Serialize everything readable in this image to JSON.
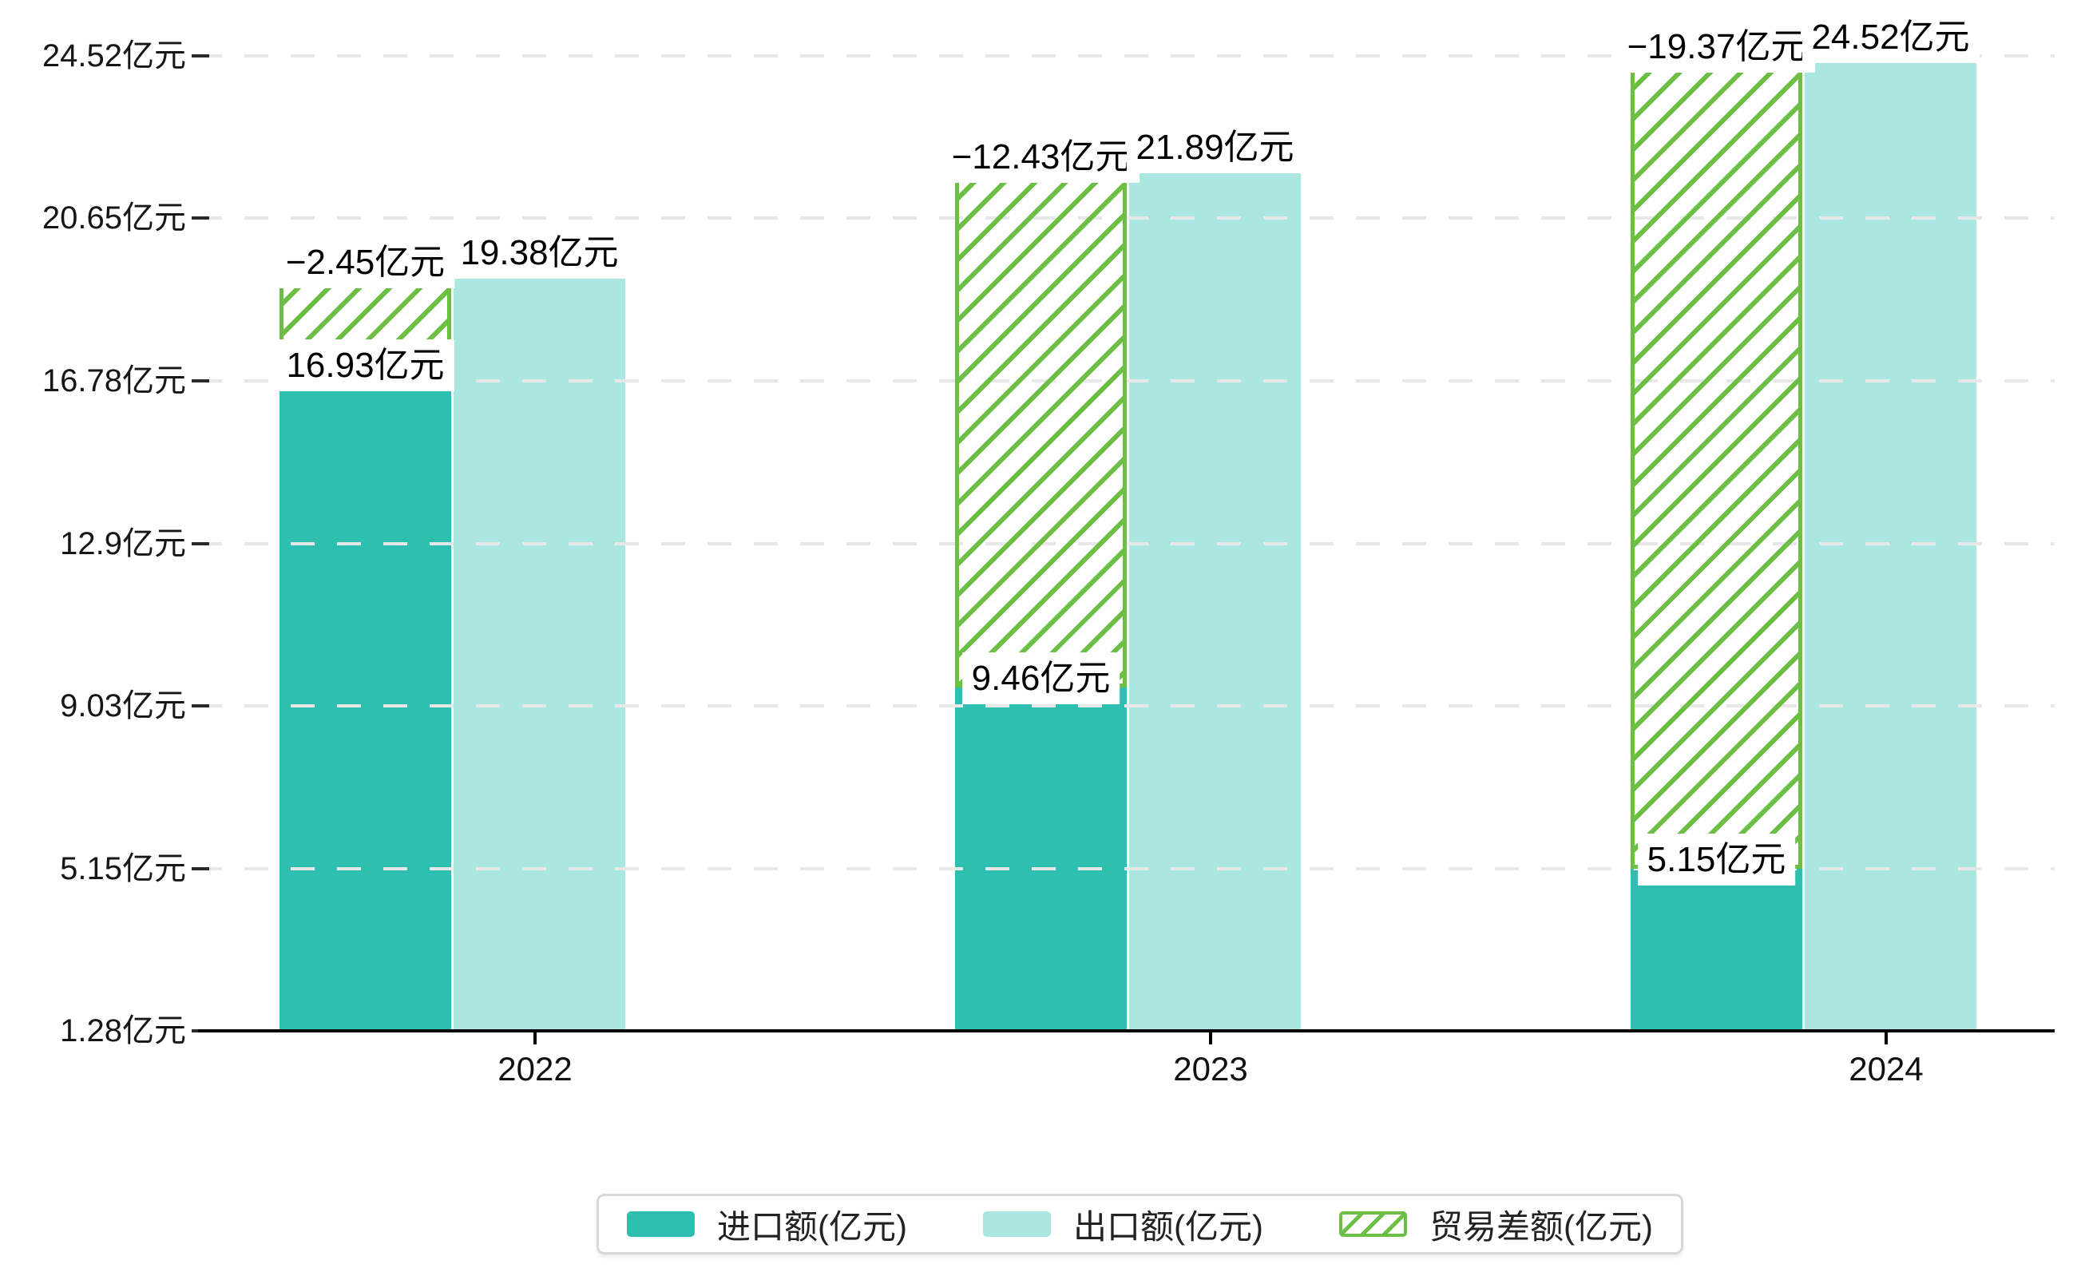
{
  "chart_data": {
    "type": "bar",
    "title": "",
    "categories": [
      "2022",
      "2023",
      "2024"
    ],
    "series": [
      {
        "name": "进口额(亿元)",
        "kind": "bar",
        "color": "#2FBFB0",
        "values": [
          16.93,
          9.46,
          5.15
        ],
        "data_labels": [
          "16.93亿元",
          "9.46亿元",
          "5.15亿元"
        ]
      },
      {
        "name": "出口额(亿元)",
        "kind": "bar",
        "color": "#A9E7E0",
        "values": [
          19.38,
          21.89,
          24.52
        ],
        "data_labels": [
          "19.38亿元",
          "21.89亿元",
          "24.52亿元"
        ]
      },
      {
        "name": "贸易差额(亿元)",
        "kind": "hatch-range",
        "color": "#6CBE45",
        "values": [
          -2.45,
          -12.43,
          -19.37
        ],
        "data_labels": [
          "−2.45亿元",
          "−12.43亿元",
          "−19.37亿元"
        ],
        "note": "hatched bar drawn over import-bar slot, spanning from import value up to export value"
      }
    ],
    "y_axis": {
      "unit": "亿元",
      "min": 1.28,
      "max": 24.52,
      "ticks": [
        {
          "value": 24.52,
          "label": "24.52亿元"
        },
        {
          "value": 20.65,
          "label": "20.65亿元"
        },
        {
          "value": 16.78,
          "label": "16.78亿元"
        },
        {
          "value": 12.9,
          "label": "12.9亿元"
        },
        {
          "value": 9.03,
          "label": "9.03亿元"
        },
        {
          "value": 5.15,
          "label": "5.15亿元"
        },
        {
          "value": 1.28,
          "label": "1.28亿元"
        }
      ]
    },
    "x_axis": {
      "labels": [
        "2022",
        "2023",
        "2024"
      ]
    },
    "legend": {
      "position": "bottom",
      "items": [
        {
          "label": "进口额(亿元)",
          "swatch": "solid",
          "color": "#2FBFB0"
        },
        {
          "label": "出口额(亿元)",
          "swatch": "solid",
          "color": "#A9E7E0"
        },
        {
          "label": "贸易差额(亿元)",
          "swatch": "hatch",
          "color": "#6CBE45"
        }
      ]
    },
    "grid": {
      "shown": true,
      "style": "dashed",
      "color": "#E8E8E8"
    },
    "colors": {
      "import_bar": "#2FBFB0",
      "export_bar": "#A9E7E0",
      "trade_hatch": "#6CBE45",
      "axis": "#000000",
      "text": "#111111",
      "gridline": "#E8E8E8",
      "label_background": "#FFFFFF"
    }
  }
}
